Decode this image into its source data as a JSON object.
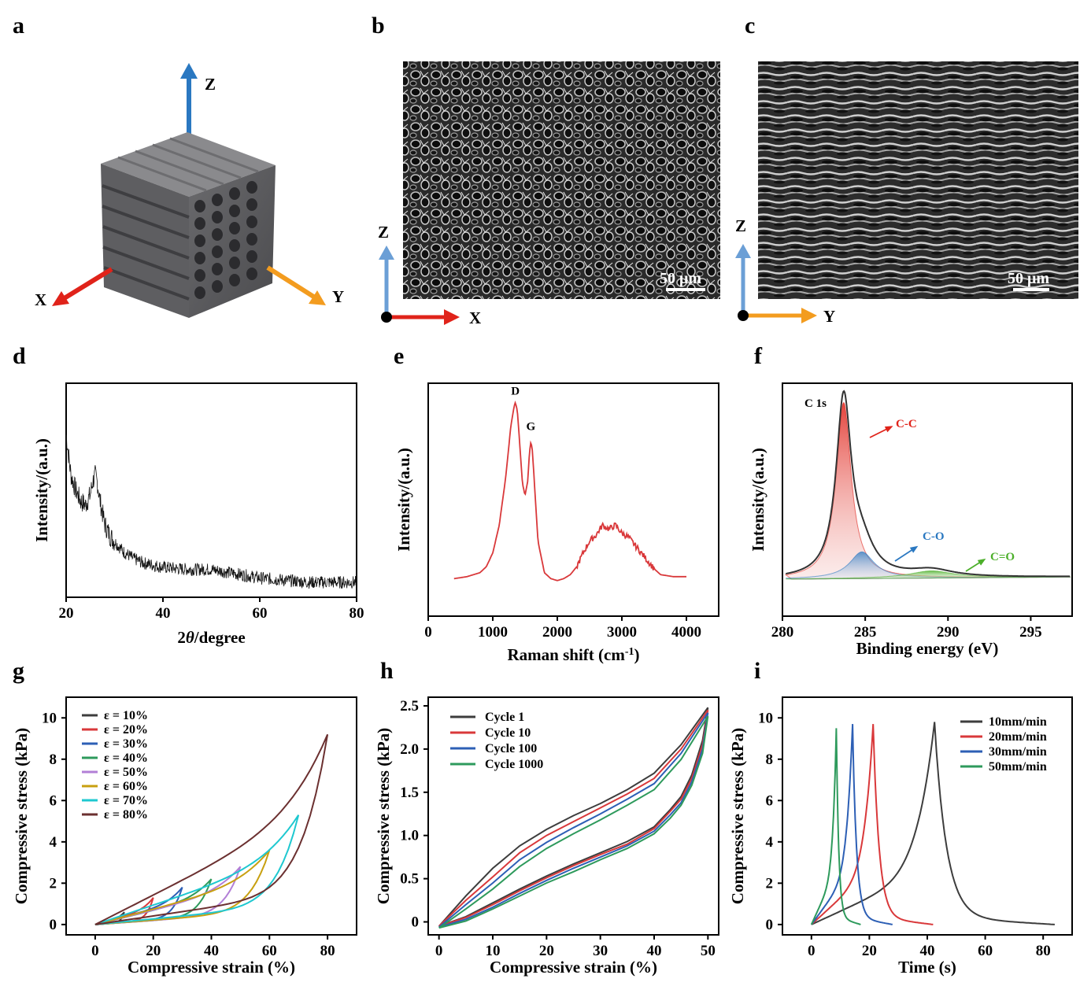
{
  "panel_letters": [
    "a",
    "b",
    "c",
    "d",
    "e",
    "f",
    "g",
    "h",
    "i"
  ],
  "panel_a": {
    "axis_labels": {
      "z": "Z",
      "x": "X",
      "y": "Y"
    },
    "colors": {
      "z": "#2a78c1",
      "x": "#e0231a",
      "y": "#f39c1f",
      "cube": "#555558"
    }
  },
  "panel_b": {
    "scale_bar": "50 μm",
    "axis_labels": {
      "vertical": "Z",
      "horizontal": "X"
    },
    "colors": {
      "vertical": "#6b9fd6",
      "horizontal": "#e0231a"
    }
  },
  "panel_c": {
    "scale_bar": "50 μm",
    "axis_labels": {
      "vertical": "Z",
      "horizontal": "Y"
    },
    "colors": {
      "vertical": "#6b9fd6",
      "horizontal": "#f39c1f"
    }
  },
  "chart_data": [
    {
      "id": "d",
      "type": "line",
      "xlabel_prefix": "2",
      "xlabel_var": "θ",
      "xlabel_suffix": "/degree",
      "ylabel": "Intensity/(a.u.)",
      "xlim": [
        20,
        80
      ],
      "ylim": [
        0,
        1
      ],
      "xticks": [
        20,
        40,
        60,
        80
      ],
      "yticks_shown": false,
      "color": "#111111",
      "x": [
        20,
        21,
        22,
        23,
        24,
        25,
        25.5,
        26,
        26.5,
        27,
        28,
        29,
        30,
        32,
        34,
        36,
        40,
        45,
        50,
        55,
        60,
        65,
        70,
        75,
        80
      ],
      "y": [
        0.76,
        0.57,
        0.5,
        0.45,
        0.43,
        0.48,
        0.54,
        0.57,
        0.53,
        0.45,
        0.34,
        0.29,
        0.26,
        0.21,
        0.18,
        0.16,
        0.14,
        0.13,
        0.13,
        0.11,
        0.09,
        0.08,
        0.07,
        0.07,
        0.07
      ]
    },
    {
      "id": "e",
      "type": "line",
      "xlabel": "Raman shift (cm-1)",
      "xlabel_main": "Raman shift (cm",
      "xlabel_sup": "-1",
      "xlabel_end": ")",
      "ylabel": "Intensity/(a.u.)",
      "xlim": [
        0,
        4500
      ],
      "ylim": [
        0,
        1
      ],
      "xticks": [
        0,
        1000,
        2000,
        3000,
        4000
      ],
      "yticks_shown": false,
      "color": "#d9383a",
      "annotations": [
        {
          "text": "D",
          "x": 1350,
          "y": 1.0
        },
        {
          "text": "G",
          "x": 1590,
          "y": 0.82
        }
      ],
      "x": [
        400,
        600,
        800,
        900,
        1000,
        1100,
        1200,
        1280,
        1330,
        1350,
        1380,
        1420,
        1460,
        1500,
        1540,
        1570,
        1590,
        1610,
        1640,
        1700,
        1800,
        1900,
        2000,
        2100,
        2200,
        2300,
        2400,
        2500,
        2600,
        2700,
        2800,
        2900,
        3000,
        3100,
        3200,
        3300,
        3400,
        3500,
        3600,
        3800,
        4000
      ],
      "y": [
        0.11,
        0.12,
        0.14,
        0.17,
        0.24,
        0.38,
        0.62,
        0.88,
        0.98,
        1.0,
        0.96,
        0.78,
        0.59,
        0.53,
        0.6,
        0.75,
        0.8,
        0.77,
        0.62,
        0.3,
        0.14,
        0.11,
        0.1,
        0.11,
        0.13,
        0.17,
        0.24,
        0.3,
        0.33,
        0.38,
        0.36,
        0.38,
        0.34,
        0.32,
        0.28,
        0.24,
        0.2,
        0.16,
        0.13,
        0.12,
        0.12
      ]
    },
    {
      "id": "f",
      "type": "area",
      "xlabel": "Binding energy (eV)",
      "ylabel": "Intensity/(a.u.)",
      "xlim": [
        280,
        297.5
      ],
      "ylim": [
        0,
        1
      ],
      "xticks": [
        280,
        285,
        290,
        295
      ],
      "yticks_shown": false,
      "title": "C 1s",
      "annotations": [
        "C-C",
        "C-O",
        "C=O"
      ],
      "series": [
        {
          "name": "C-C",
          "color": "#e0231a",
          "center": 283.7,
          "height": 0.86,
          "width": 0.55
        },
        {
          "name": "C-O",
          "color": "#2a78c1",
          "center": 284.8,
          "height": 0.13,
          "width": 0.9
        },
        {
          "name": "C=O",
          "color": "#4caf2a",
          "center": 289.0,
          "height": 0.035,
          "width": 1.6
        }
      ],
      "envelope_color": "#333333",
      "baseline": 0.05
    },
    {
      "id": "g",
      "type": "line",
      "xlabel": "Compressive strain (%)",
      "ylabel": "Compressive stress (kPa)",
      "xlim": [
        -10,
        90
      ],
      "ylim": [
        -0.5,
        11
      ],
      "xticks": [
        0,
        20,
        40,
        60,
        80
      ],
      "yticks": [
        0,
        2,
        4,
        6,
        8,
        10
      ],
      "series": [
        {
          "name": "ε = 10%",
          "color": "#3d3d3d",
          "strain": 10,
          "peak": 0.6
        },
        {
          "name": "ε = 20%",
          "color": "#d9383a",
          "strain": 20,
          "peak": 1.3
        },
        {
          "name": "ε = 30%",
          "color": "#2d5fb5",
          "strain": 30,
          "peak": 1.8
        },
        {
          "name": "ε = 40%",
          "color": "#2e9a5c",
          "strain": 40,
          "peak": 2.2
        },
        {
          "name": "ε = 50%",
          "color": "#b27fd6",
          "strain": 50,
          "peak": 2.8
        },
        {
          "name": "ε = 60%",
          "color": "#c8a010",
          "strain": 60,
          "peak": 3.6
        },
        {
          "name": "ε = 70%",
          "color": "#1ec8d0",
          "strain": 70,
          "peak": 5.3
        },
        {
          "name": "ε = 80%",
          "color": "#6b3030",
          "strain": 80,
          "peak": 9.2
        }
      ]
    },
    {
      "id": "h",
      "type": "line",
      "xlabel": "Compressive strain (%)",
      "ylabel": "Compressive stress (kPa)",
      "xlim": [
        -2,
        52
      ],
      "ylim": [
        -0.15,
        2.6
      ],
      "xticks": [
        0,
        10,
        20,
        30,
        40,
        50
      ],
      "yticks": [
        0.0,
        0.5,
        1.0,
        1.5,
        2.0,
        2.5
      ],
      "ytick_labels": [
        "0",
        "0.5",
        "1.0",
        "1.5",
        "2.0",
        "2.5"
      ],
      "series": [
        {
          "name": "Cycle 1",
          "color": "#3d3d3d",
          "peak": 2.48,
          "load": [
            [
              0,
              -0.05
            ],
            [
              5,
              0.3
            ],
            [
              10,
              0.62
            ],
            [
              15,
              0.88
            ],
            [
              20,
              1.07
            ],
            [
              25,
              1.23
            ],
            [
              30,
              1.37
            ],
            [
              35,
              1.53
            ],
            [
              40,
              1.72
            ],
            [
              45,
              2.05
            ],
            [
              50,
              2.48
            ]
          ],
          "unload": [
            [
              50,
              2.48
            ],
            [
              49,
              2.1
            ],
            [
              47,
              1.7
            ],
            [
              45,
              1.45
            ],
            [
              43,
              1.3
            ],
            [
              40,
              1.1
            ],
            [
              35,
              0.93
            ],
            [
              30,
              0.8
            ],
            [
              25,
              0.67
            ],
            [
              20,
              0.53
            ],
            [
              15,
              0.38
            ],
            [
              10,
              0.22
            ],
            [
              5,
              0.06
            ],
            [
              0,
              -0.05
            ]
          ]
        },
        {
          "name": "Cycle 10",
          "color": "#d9383a",
          "peak": 2.45,
          "load": [
            [
              0,
              -0.05
            ],
            [
              5,
              0.25
            ],
            [
              10,
              0.52
            ],
            [
              15,
              0.8
            ],
            [
              20,
              1.0
            ],
            [
              25,
              1.16
            ],
            [
              30,
              1.32
            ],
            [
              35,
              1.48
            ],
            [
              40,
              1.66
            ],
            [
              45,
              2.0
            ],
            [
              50,
              2.45
            ]
          ],
          "unload": [
            [
              50,
              2.45
            ],
            [
              49,
              2.05
            ],
            [
              47,
              1.66
            ],
            [
              45,
              1.42
            ],
            [
              43,
              1.28
            ],
            [
              40,
              1.08
            ],
            [
              35,
              0.9
            ],
            [
              30,
              0.78
            ],
            [
              25,
              0.65
            ],
            [
              20,
              0.51
            ],
            [
              15,
              0.36
            ],
            [
              10,
              0.2
            ],
            [
              5,
              0.05
            ],
            [
              0,
              -0.05
            ]
          ]
        },
        {
          "name": "Cycle 100",
          "color": "#2d5fb5",
          "peak": 2.42,
          "load": [
            [
              0,
              -0.06
            ],
            [
              5,
              0.2
            ],
            [
              10,
              0.45
            ],
            [
              15,
              0.72
            ],
            [
              20,
              0.92
            ],
            [
              25,
              1.09
            ],
            [
              30,
              1.25
            ],
            [
              35,
              1.42
            ],
            [
              40,
              1.6
            ],
            [
              45,
              1.95
            ],
            [
              50,
              2.42
            ]
          ],
          "unload": [
            [
              50,
              2.42
            ],
            [
              49,
              2.0
            ],
            [
              47,
              1.62
            ],
            [
              45,
              1.38
            ],
            [
              43,
              1.24
            ],
            [
              40,
              1.05
            ],
            [
              35,
              0.88
            ],
            [
              30,
              0.75
            ],
            [
              25,
              0.62
            ],
            [
              20,
              0.48
            ],
            [
              15,
              0.33
            ],
            [
              10,
              0.17
            ],
            [
              5,
              0.03
            ],
            [
              0,
              -0.06
            ]
          ]
        },
        {
          "name": "Cycle 1000",
          "color": "#2e9a5c",
          "peak": 2.38,
          "load": [
            [
              0,
              -0.07
            ],
            [
              5,
              0.15
            ],
            [
              10,
              0.38
            ],
            [
              15,
              0.64
            ],
            [
              20,
              0.85
            ],
            [
              25,
              1.02
            ],
            [
              30,
              1.18
            ],
            [
              35,
              1.35
            ],
            [
              40,
              1.53
            ],
            [
              45,
              1.88
            ],
            [
              50,
              2.38
            ]
          ],
          "unload": [
            [
              50,
              2.38
            ],
            [
              49,
              1.95
            ],
            [
              47,
              1.58
            ],
            [
              45,
              1.35
            ],
            [
              43,
              1.2
            ],
            [
              40,
              1.02
            ],
            [
              35,
              0.85
            ],
            [
              30,
              0.72
            ],
            [
              25,
              0.58
            ],
            [
              20,
              0.45
            ],
            [
              15,
              0.3
            ],
            [
              10,
              0.15
            ],
            [
              5,
              0.01
            ],
            [
              0,
              -0.07
            ]
          ]
        }
      ]
    },
    {
      "id": "i",
      "type": "line",
      "xlabel": "Time (s)",
      "ylabel": "Compressive stress (kPa)",
      "xlim": [
        -10,
        90
      ],
      "ylim": [
        -0.5,
        11
      ],
      "xticks": [
        0,
        20,
        40,
        60,
        80
      ],
      "yticks": [
        0,
        2,
        4,
        6,
        8,
        10
      ],
      "series": [
        {
          "name": "10mm/min",
          "color": "#3d3d3d",
          "peak_t": 42.5,
          "peak": 9.8,
          "end_t": 84
        },
        {
          "name": "20mm/min",
          "color": "#d9383a",
          "peak_t": 21.3,
          "peak": 9.7,
          "end_t": 42
        },
        {
          "name": "30mm/min",
          "color": "#2d5fb5",
          "peak_t": 14.2,
          "peak": 9.7,
          "end_t": 28
        },
        {
          "name": "50mm/min",
          "color": "#2e9a5c",
          "peak_t": 8.6,
          "peak": 9.5,
          "end_t": 17
        }
      ]
    }
  ]
}
